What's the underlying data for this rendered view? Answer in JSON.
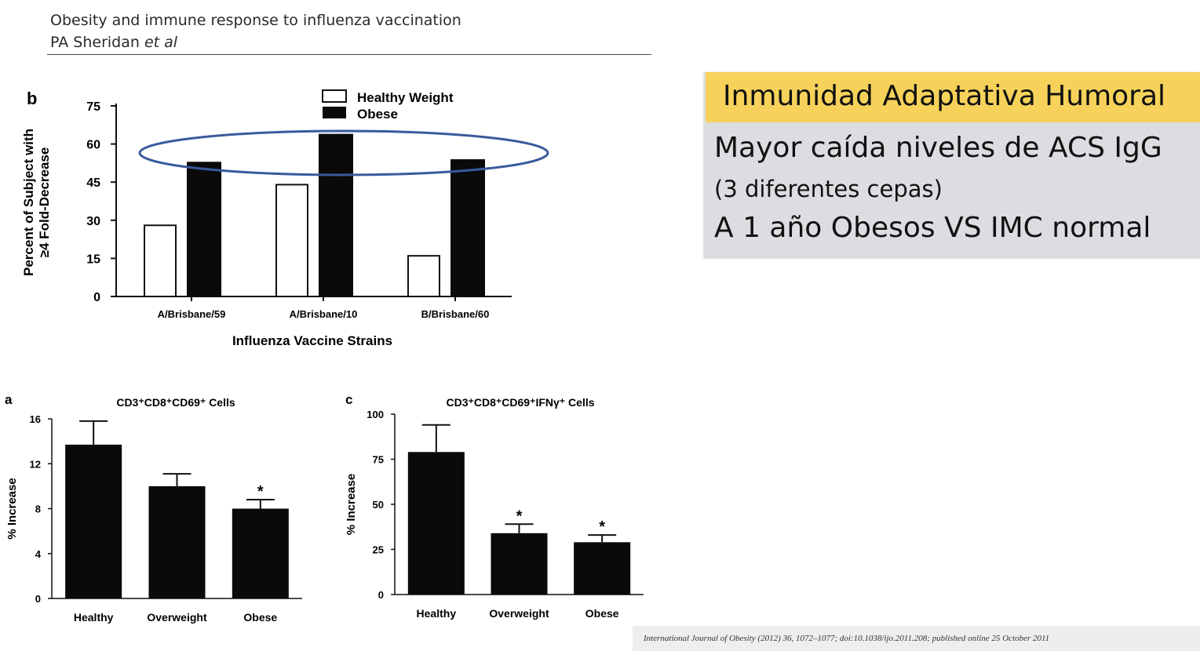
{
  "header": {
    "title": "Obesity and immune response to influenza vaccination",
    "author_prefix": "PA Sheridan",
    "author_suffix": "et al"
  },
  "summary_panel": {
    "heading": "Inmunidad Adaptativa Humoral",
    "line1": "Mayor caída niveles de ACS IgG",
    "line2": "(3 diferentes cepas)",
    "line3": "A 1 año Obesos VS  IMC normal",
    "heading_bg": "#f6d25a",
    "body_bg": "#dcdde1"
  },
  "citation": "International Journal of Obesity (2012) 36, 1072–1077; doi:10.1038/ijo.2011.208; published online 25 October 2011",
  "colors": {
    "bar_filled": "#0a0a0a",
    "bar_open": "#ffffff",
    "ellipse": "#3a5a9c"
  },
  "chart_data": [
    {
      "panel": "b",
      "type": "bar",
      "title": "",
      "xlabel": "Influenza Vaccine Strains",
      "ylabel_line1": "Percent of Subject with",
      "ylabel_line2": "≥4 Fold-Decrease",
      "ylim": [
        0,
        75
      ],
      "yticks": [
        0,
        15,
        30,
        45,
        60,
        75
      ],
      "categories": [
        "A/Brisbane/59",
        "A/Brisbane/10",
        "B/Brisbane/60"
      ],
      "series": [
        {
          "name": "Healthy Weight",
          "values": [
            28,
            44,
            16
          ]
        },
        {
          "name": "Obese",
          "values": [
            53,
            64,
            54
          ]
        }
      ],
      "legend_position": "top",
      "annotation": "ellipse around Obese bars"
    },
    {
      "panel": "a",
      "type": "bar",
      "title": "CD3⁺CD8⁺CD69⁺ Cells",
      "ylabel": "% Increase",
      "xlabel": "",
      "ylim": [
        0,
        16
      ],
      "yticks": [
        0,
        4,
        8,
        12,
        16
      ],
      "categories": [
        "Healthy",
        "Overweight",
        "Obese"
      ],
      "values": [
        13.7,
        10.0,
        8.0
      ],
      "errors": [
        2.1,
        1.1,
        0.8
      ],
      "significance": [
        "",
        "",
        "*"
      ]
    },
    {
      "panel": "c",
      "type": "bar",
      "title": "CD3⁺CD8⁺CD69⁺IFNγ⁺ Cells",
      "ylabel": "% Increase",
      "xlabel": "",
      "ylim": [
        0,
        100
      ],
      "yticks": [
        0,
        25,
        50,
        75,
        100
      ],
      "categories": [
        "Healthy",
        "Overweight",
        "Obese"
      ],
      "values": [
        79,
        34,
        29
      ],
      "errors": [
        15,
        5,
        4
      ],
      "significance": [
        "",
        "*",
        "*"
      ]
    }
  ]
}
